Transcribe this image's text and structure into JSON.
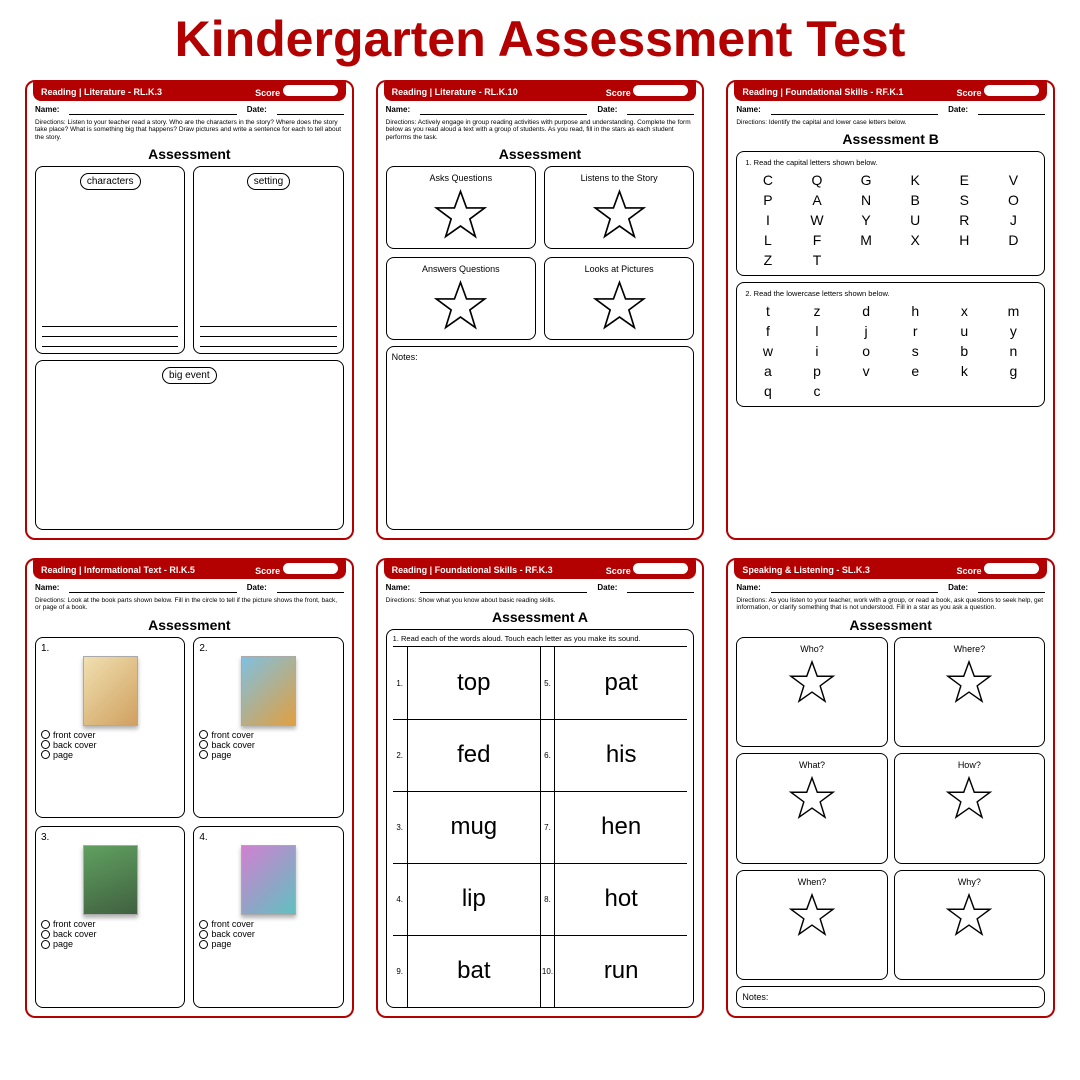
{
  "title": "Kindergarten Assessment Test",
  "colors": {
    "brand": "#b30000",
    "text": "#000000",
    "bg": "#ffffff"
  },
  "labels": {
    "name": "Name:",
    "date": "Date:",
    "score": "Score",
    "notes": "Notes:"
  },
  "cards": [
    {
      "header": "Reading | Literature - RL.K.3",
      "directions": "Directions: Listen to your teacher read a story. Who are the characters in the story? Where does the story take place? What is something big that happens? Draw pictures and write a sentence for each to tell about the story.",
      "section_title": "Assessment",
      "boxes": [
        "characters",
        "setting",
        "big event"
      ]
    },
    {
      "header": "Reading | Literature - RL.K.10",
      "directions": "Directions: Actively engage in group reading activities with purpose and understanding. Complete the form below as you read aloud a text with a group of students. As you read, fill in the stars as each student performs the task.",
      "section_title": "Assessment",
      "stars": [
        "Asks Questions",
        "Listens to the Story",
        "Answers Questions",
        "Looks at Pictures"
      ]
    },
    {
      "header": "Reading | Foundational Skills - RF.K.1",
      "directions": "Directions: Identify the capital and lower case letters below.",
      "section_title": "Assessment B",
      "p1_instr": "1. Read the capital letters shown below.",
      "capitals": [
        "C",
        "Q",
        "G",
        "K",
        "E",
        "V",
        "P",
        "A",
        "N",
        "B",
        "S",
        "O",
        "I",
        "W",
        "Y",
        "U",
        "R",
        "J",
        "L",
        "F",
        "M",
        "X",
        "H",
        "D",
        "Z",
        "T"
      ],
      "p2_instr": "2. Read the lowercase letters shown below.",
      "lowers": [
        "t",
        "z",
        "d",
        "h",
        "x",
        "m",
        "f",
        "l",
        "j",
        "r",
        "u",
        "y",
        "w",
        "i",
        "o",
        "s",
        "b",
        "n",
        "a",
        "p",
        "v",
        "e",
        "k",
        "g",
        "q",
        "c"
      ]
    },
    {
      "header": "Reading | Informational Text - RI.K.5",
      "directions": "Directions: Look at the book parts shown below. Fill in the circle to tell if the picture shows the front, back, or page of a book.",
      "section_title": "Assessment",
      "cells": [
        "1.",
        "2.",
        "3.",
        "4."
      ],
      "options": [
        "front cover",
        "back cover",
        "page"
      ]
    },
    {
      "header": "Reading | Foundational Skills - RF.K.3",
      "directions": "Directions: Show what you know about basic reading skills.",
      "section_title": "Assessment A",
      "word_instr": "1. Read each of the words aloud.  Touch each letter as you make its sound.",
      "words_left": [
        "top",
        "fed",
        "mug",
        "lip",
        "bat"
      ],
      "words_right": [
        "pat",
        "his",
        "hen",
        "hot",
        "run"
      ],
      "nums_left": [
        "1.",
        "2.",
        "3.",
        "4.",
        "9."
      ],
      "nums_right": [
        "5.",
        "6.",
        "7.",
        "8.",
        "10."
      ]
    },
    {
      "header": "Speaking & Listening - SL.K.3",
      "directions": "Directions: As you listen to your teacher, work with a group, or read a book, ask questions to seek help, get information, or clarify something that is not understood. Fill in a star as you ask a question.",
      "section_title": "Assessment",
      "questions": [
        "Who?",
        "Where?",
        "What?",
        "How?",
        "When?",
        "Why?"
      ]
    }
  ]
}
